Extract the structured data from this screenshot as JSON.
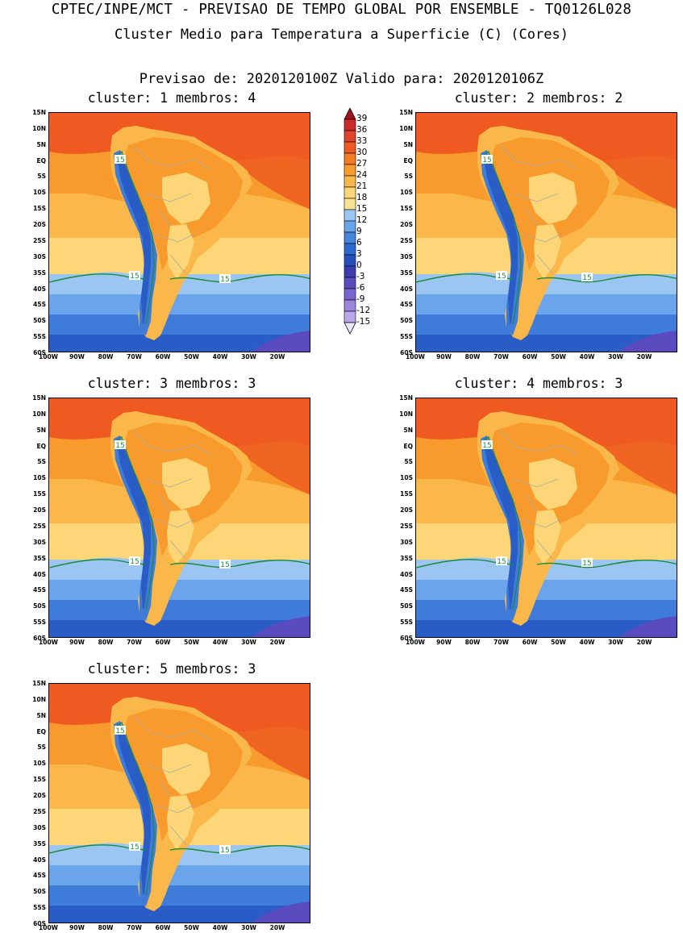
{
  "header": {
    "line1": "CPTEC/INPE/MCT - PREVISAO DE TEMPO GLOBAL POR ENSEMBLE - TQ0126L028",
    "line2": "Cluster Medio para Temperatura a Superficie (C) (Cores)",
    "line3": "Previsao de: 2020120100Z   Valido para: 2020120106Z"
  },
  "panels": [
    {
      "title": "cluster: 1  membros: 4"
    },
    {
      "title": "cluster: 2  membros: 2"
    },
    {
      "title": "cluster: 3  membros: 3"
    },
    {
      "title": "cluster: 4  membros: 3"
    },
    {
      "title": "cluster: 5  membros: 3"
    }
  ],
  "axes": {
    "lat_labels": [
      "15N",
      "10N",
      "5N",
      "EQ",
      "5S",
      "10S",
      "15S",
      "20S",
      "25S",
      "30S",
      "35S",
      "40S",
      "45S",
      "50S",
      "55S",
      "60S"
    ],
    "lon_labels": [
      "100W",
      "90W",
      "80W",
      "70W",
      "60W",
      "50W",
      "40W",
      "30W",
      "20W"
    ]
  },
  "contour_label": "15",
  "colorbar": {
    "labels": [
      "39",
      "36",
      "33",
      "30",
      "27",
      "24",
      "21",
      "18",
      "15",
      "12",
      "9",
      "6",
      "3",
      "0",
      "-3",
      "-6",
      "-9",
      "-12",
      "-15"
    ],
    "colors": [
      "#b2182b",
      "#cc2a2a",
      "#e0442a",
      "#ef5a21",
      "#f47b20",
      "#f89b2c",
      "#fbb84a",
      "#fdd777",
      "#f7e391",
      "#9cc6f2",
      "#6aa4ea",
      "#4585dc",
      "#2e69cf",
      "#2550bb",
      "#3a3cb0",
      "#5a4cc0",
      "#7a66d0",
      "#9a86dc",
      "#bba8ea",
      "#ddd0f6"
    ],
    "top_arrow": "#a01020",
    "bottom_arrow": "#ece6fb"
  },
  "palette": {
    "hot": "#ef5a21",
    "warm": "#f89b2c",
    "mild": "#fbb84a",
    "pale": "#fdd777",
    "cool": "#9cc6f2",
    "mid": "#6aa4ea",
    "cold": "#3f7bd8",
    "deep": "#2a5cc6",
    "purple": "#5a4cc0",
    "border": "#aaaaaa",
    "contour": "#1a8a3a"
  }
}
